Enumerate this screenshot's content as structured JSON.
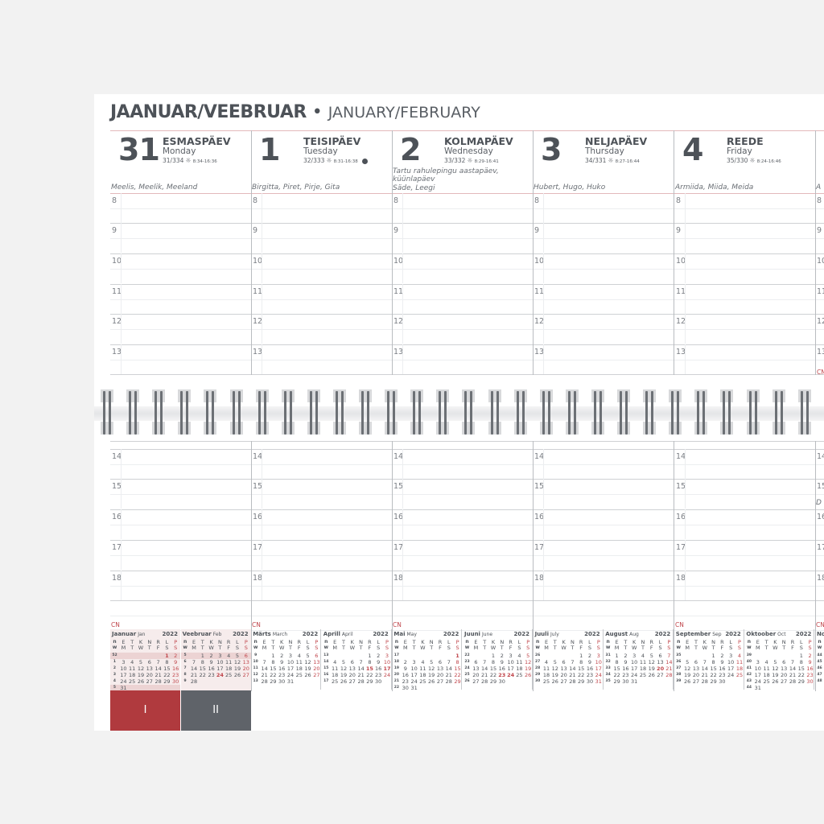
{
  "title": {
    "et": "JAANUAR/VEEBRUAR",
    "sep": "•",
    "en": "JANUARY/FEBRUARY"
  },
  "days": [
    {
      "num": "31",
      "et": "ESMASPÄEV",
      "en": "Monday",
      "count": "31/334",
      "sun": "8:34-16:36",
      "names": "Meelis, Meelik, Meeland",
      "note": "",
      "icon": ""
    },
    {
      "num": "1",
      "et": "TEISIPÄEV",
      "en": "Tuesday",
      "count": "32/333",
      "sun": "8:31-16:38",
      "names": "Birgitta, Piret, Pirje, Gita",
      "note": "",
      "icon": "full-moon"
    },
    {
      "num": "2",
      "et": "KOLMAPÄEV",
      "en": "Wednesday",
      "count": "33/332",
      "sun": "8:29-16:41",
      "names": "Säde, Leegi",
      "note": "Tartu rahulepingu aastapäev, küünlapäev",
      "icon": "flag"
    },
    {
      "num": "3",
      "et": "NELJAPÄEV",
      "en": "Thursday",
      "count": "34/331",
      "sun": "8:27-16:44",
      "names": "Hubert, Hugo, Huko",
      "note": "",
      "icon": ""
    },
    {
      "num": "4",
      "et": "REEDE",
      "en": "Friday",
      "count": "35/330",
      "sun": "8:24-16:46",
      "names": "Armiida, Miida, Meida",
      "note": "",
      "icon": ""
    },
    {
      "num": "",
      "et": "",
      "en": "",
      "count": "",
      "sun": "",
      "names": "A",
      "note": "",
      "icon": ""
    }
  ],
  "fragment_bottom": "D",
  "hours_top": [
    "8",
    "9",
    "10",
    "11",
    "12",
    "13"
  ],
  "hours_bottom": [
    "14",
    "15",
    "16",
    "17",
    "18"
  ],
  "cn_label": "CN",
  "weekday_et": [
    "n",
    "E",
    "T",
    "K",
    "N",
    "R",
    "L",
    "P"
  ],
  "weekday_en": [
    "w",
    "M",
    "T",
    "W",
    "T",
    "F",
    "S",
    "S"
  ],
  "months": [
    {
      "name": "Jaanuar",
      "en": "Jan",
      "year": "2022",
      "shade": true,
      "holidays": [
        "1"
      ],
      "weeks": [
        [
          "52",
          "",
          "",
          "",
          "",
          "",
          "1",
          "2"
        ],
        [
          "1",
          "3",
          "4",
          "5",
          "6",
          "7",
          "8",
          "9"
        ],
        [
          "2",
          "10",
          "11",
          "12",
          "13",
          "14",
          "15",
          "16"
        ],
        [
          "3",
          "17",
          "18",
          "19",
          "20",
          "21",
          "22",
          "23"
        ],
        [
          "4",
          "24",
          "25",
          "26",
          "27",
          "28",
          "29",
          "30"
        ],
        [
          "5",
          "31",
          "",
          "",
          "",
          "",
          "",
          ""
        ]
      ]
    },
    {
      "name": "Veebruar",
      "en": "Feb",
      "year": "2022",
      "shade": true,
      "holidays": [
        "24"
      ],
      "weeks": [
        [
          "5",
          "",
          "1",
          "2",
          "3",
          "4",
          "5",
          "6"
        ],
        [
          "6",
          "7",
          "8",
          "9",
          "10",
          "11",
          "12",
          "13"
        ],
        [
          "7",
          "14",
          "15",
          "16",
          "17",
          "18",
          "19",
          "20"
        ],
        [
          "8",
          "21",
          "22",
          "23",
          "24",
          "25",
          "26",
          "27"
        ],
        [
          "9",
          "28",
          "",
          "",
          "",
          "",
          "",
          ""
        ]
      ]
    },
    {
      "name": "Märts",
      "en": "March",
      "year": "2022",
      "shade": false,
      "holidays": [],
      "weeks": [
        [
          "9",
          "",
          "1",
          "2",
          "3",
          "4",
          "5",
          "6"
        ],
        [
          "10",
          "7",
          "8",
          "9",
          "10",
          "11",
          "12",
          "13"
        ],
        [
          "11",
          "14",
          "15",
          "16",
          "17",
          "18",
          "19",
          "20"
        ],
        [
          "12",
          "21",
          "22",
          "23",
          "24",
          "25",
          "26",
          "27"
        ],
        [
          "13",
          "28",
          "29",
          "30",
          "31",
          "",
          "",
          ""
        ]
      ]
    },
    {
      "name": "Aprill",
      "en": "April",
      "year": "2022",
      "shade": false,
      "holidays": [
        "15",
        "17"
      ],
      "weeks": [
        [
          "13",
          "",
          "",
          "",
          "",
          "1",
          "2",
          "3"
        ],
        [
          "14",
          "4",
          "5",
          "6",
          "7",
          "8",
          "9",
          "10"
        ],
        [
          "15",
          "11",
          "12",
          "13",
          "14",
          "15",
          "16",
          "17"
        ],
        [
          "16",
          "18",
          "19",
          "20",
          "21",
          "22",
          "23",
          "24"
        ],
        [
          "17",
          "25",
          "26",
          "27",
          "28",
          "29",
          "30",
          ""
        ]
      ]
    },
    {
      "name": "Mai",
      "en": "May",
      "year": "2022",
      "shade": false,
      "holidays": [
        "1"
      ],
      "weeks": [
        [
          "17",
          "",
          "",
          "",
          "",
          "",
          "",
          "1"
        ],
        [
          "18",
          "2",
          "3",
          "4",
          "5",
          "6",
          "7",
          "8"
        ],
        [
          "19",
          "9",
          "10",
          "11",
          "12",
          "13",
          "14",
          "15"
        ],
        [
          "20",
          "16",
          "17",
          "18",
          "19",
          "20",
          "21",
          "22"
        ],
        [
          "21",
          "23",
          "24",
          "25",
          "26",
          "27",
          "28",
          "29"
        ],
        [
          "22",
          "30",
          "31",
          "",
          "",
          "",
          "",
          ""
        ]
      ]
    },
    {
      "name": "Juuni",
      "en": "June",
      "year": "2022",
      "shade": false,
      "holidays": [
        "23",
        "24"
      ],
      "weeks": [
        [
          "22",
          "",
          "",
          "1",
          "2",
          "3",
          "4",
          "5"
        ],
        [
          "23",
          "6",
          "7",
          "8",
          "9",
          "10",
          "11",
          "12"
        ],
        [
          "24",
          "13",
          "14",
          "15",
          "16",
          "17",
          "18",
          "19"
        ],
        [
          "25",
          "20",
          "21",
          "22",
          "23",
          "24",
          "25",
          "26"
        ],
        [
          "26",
          "27",
          "28",
          "29",
          "30",
          "",
          "",
          ""
        ]
      ]
    },
    {
      "name": "Juuli",
      "en": "July",
      "year": "2022",
      "shade": false,
      "holidays": [],
      "weeks": [
        [
          "26",
          "",
          "",
          "",
          "",
          "1",
          "2",
          "3"
        ],
        [
          "27",
          "4",
          "5",
          "6",
          "7",
          "8",
          "9",
          "10"
        ],
        [
          "28",
          "11",
          "12",
          "13",
          "14",
          "15",
          "16",
          "17"
        ],
        [
          "29",
          "18",
          "19",
          "20",
          "21",
          "22",
          "23",
          "24"
        ],
        [
          "30",
          "25",
          "26",
          "27",
          "28",
          "29",
          "30",
          "31"
        ]
      ]
    },
    {
      "name": "August",
      "en": "Aug",
      "year": "2022",
      "shade": false,
      "holidays": [
        "20"
      ],
      "weeks": [
        [
          "31",
          "1",
          "2",
          "3",
          "4",
          "5",
          "6",
          "7"
        ],
        [
          "32",
          "8",
          "9",
          "10",
          "11",
          "12",
          "13",
          "14"
        ],
        [
          "33",
          "15",
          "16",
          "17",
          "18",
          "19",
          "20",
          "21"
        ],
        [
          "34",
          "22",
          "23",
          "24",
          "25",
          "26",
          "27",
          "28"
        ],
        [
          "35",
          "29",
          "30",
          "31",
          "",
          "",
          "",
          ""
        ]
      ]
    },
    {
      "name": "September",
      "en": "Sep",
      "year": "2022",
      "shade": false,
      "holidays": [],
      "weeks": [
        [
          "35",
          "",
          "",
          "",
          "1",
          "2",
          "3",
          "4"
        ],
        [
          "36",
          "5",
          "6",
          "7",
          "8",
          "9",
          "10",
          "11"
        ],
        [
          "37",
          "12",
          "13",
          "14",
          "15",
          "16",
          "17",
          "18"
        ],
        [
          "38",
          "19",
          "20",
          "21",
          "22",
          "23",
          "24",
          "25"
        ],
        [
          "39",
          "26",
          "27",
          "28",
          "29",
          "30",
          "",
          ""
        ]
      ]
    },
    {
      "name": "Oktoober",
      "en": "Oct",
      "year": "2022",
      "shade": false,
      "holidays": [],
      "weeks": [
        [
          "39",
          "",
          "",
          "",
          "",
          "",
          "1",
          "2"
        ],
        [
          "40",
          "3",
          "4",
          "5",
          "6",
          "7",
          "8",
          "9"
        ],
        [
          "41",
          "10",
          "11",
          "12",
          "13",
          "14",
          "15",
          "16"
        ],
        [
          "42",
          "17",
          "18",
          "19",
          "20",
          "21",
          "22",
          "23"
        ],
        [
          "43",
          "24",
          "25",
          "26",
          "27",
          "28",
          "29",
          "30"
        ],
        [
          "44",
          "31",
          "",
          "",
          "",
          "",
          "",
          ""
        ]
      ]
    },
    {
      "name": "No",
      "en": "",
      "year": "",
      "shade": false,
      "holidays": [],
      "weeks": [
        [
          "44",
          "",
          "",
          "",
          "",
          "",
          "",
          ""
        ],
        [
          "45",
          "",
          "",
          "",
          "",
          "",
          "",
          ""
        ],
        [
          "46",
          "",
          "",
          "",
          "",
          "",
          "",
          ""
        ],
        [
          "47",
          "",
          "",
          "",
          "",
          "",
          "",
          ""
        ],
        [
          "48",
          "",
          "",
          "",
          "",
          "",
          "",
          ""
        ]
      ]
    }
  ],
  "tabs": [
    {
      "label": "I",
      "color": "#b03a3e"
    },
    {
      "label": "II",
      "color": "#5f6369"
    }
  ],
  "colors": {
    "text": "#4d5258",
    "accent_red": "#c0454b",
    "rule_red": "#e3b9bb"
  }
}
